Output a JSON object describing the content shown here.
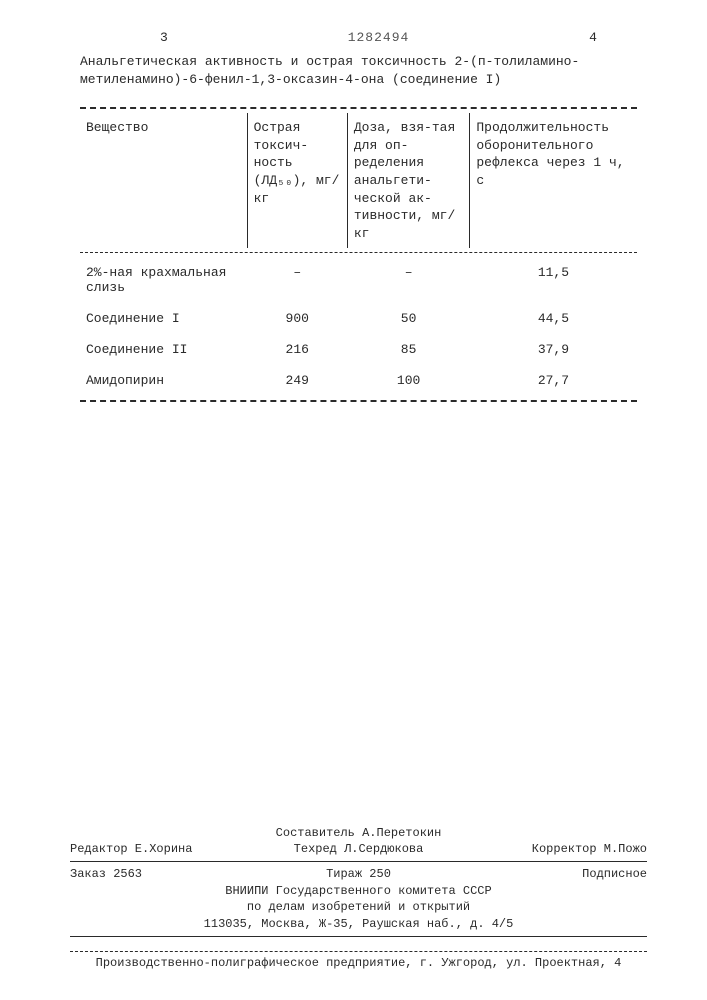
{
  "header": {
    "page_left": "3",
    "doc_number": "1282494",
    "page_right": "4",
    "title_line1": "Анальгетическая активность и острая токсичность 2-(п-толиламино-",
    "title_line2": "метиленамино)-6-фенил-1,3-оксазин-4-она (соединение I)"
  },
  "table": {
    "columns": [
      "Вещество",
      "Острая токсич-ность (ЛД₅₀), мг/кг",
      "Доза, взя-тая для оп-ределения анальгети-ческой ак-тивности, мг/кг",
      "Продолжительность оборонительного рефлекса через 1 ч, с"
    ],
    "rows": [
      {
        "substance": "2%-ная крахмальная слизь",
        "ld50": "–",
        "dose": "–",
        "reflex": "11,5"
      },
      {
        "substance": "Соединение I",
        "ld50": "900",
        "dose": "50",
        "reflex": "44,5"
      },
      {
        "substance": "Соединение II",
        "ld50": "216",
        "dose": "85",
        "reflex": "37,9"
      },
      {
        "substance": "Амидопирин",
        "ld50": "249",
        "dose": "100",
        "reflex": "27,7"
      }
    ]
  },
  "footer": {
    "compiler": "Составитель А.Перетокин",
    "editor": "Редактор Е.Хорина",
    "tech_editor": "Техред Л.Сердюкова",
    "corrector": "Корректор М.Пожо",
    "order": "Заказ 2563",
    "tirazh": "Тираж 250",
    "subscription": "Подписное",
    "org1": "ВНИИПИ Государственного комитета СССР",
    "org2": "по делам изобретений и открытий",
    "org3": "113035, Москва, Ж-35, Раушская наб., д. 4/5",
    "printer": "Производственно-полиграфическое предприятие, г. Ужгород, ул. Проектная, 4"
  }
}
